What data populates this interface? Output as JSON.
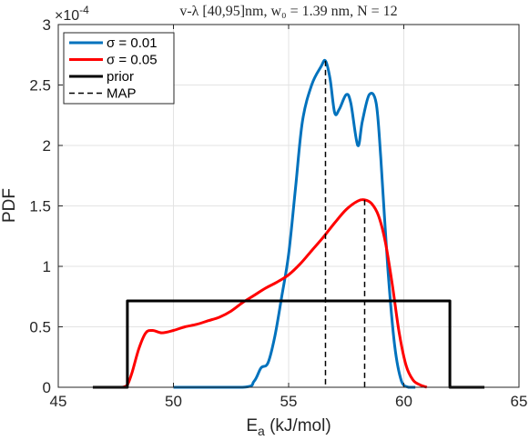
{
  "chart_data": {
    "type": "line",
    "title": "v-λ [40,95]nm, w₀ = 1.39 nm, N = 12",
    "xlabel_main": "E",
    "xlabel_sub": "a",
    "xlabel_rest": " (kJ/mol)",
    "ylabel": "PDF",
    "y_exponent_base": "×10",
    "y_exponent_power": "-4",
    "xlim": [
      45,
      65
    ],
    "ylim": [
      0,
      3
    ],
    "xticks": [
      45,
      50,
      55,
      60,
      65
    ],
    "yticks": [
      0,
      0.5,
      1,
      1.5,
      2,
      2.5,
      3
    ],
    "xtick_labels": [
      "45",
      "50",
      "55",
      "60",
      "65"
    ],
    "ytick_labels": [
      "0",
      "0.5",
      "1",
      "1.5",
      "2",
      "2.5",
      "3"
    ],
    "grid": true,
    "legend_position": "top-left",
    "series": [
      {
        "name": "σ = 0.01",
        "color": "#0072BD",
        "style": "solid",
        "x": [
          50,
          53.0,
          53.5,
          53.8,
          54.1,
          54.4,
          54.7,
          55.0,
          55.3,
          55.6,
          56.0,
          56.4,
          56.6,
          56.8,
          57.0,
          57.2,
          57.5,
          57.7,
          58.0,
          58.2,
          58.5,
          58.8,
          59.0,
          59.3,
          59.6,
          59.9,
          60.2,
          60.5
        ],
        "y": [
          0.0,
          0.0,
          0.05,
          0.16,
          0.2,
          0.42,
          0.75,
          1.1,
          1.65,
          2.2,
          2.5,
          2.65,
          2.7,
          2.55,
          2.27,
          2.3,
          2.42,
          2.35,
          2.0,
          2.2,
          2.42,
          2.35,
          1.9,
          1.0,
          0.35,
          0.05,
          0.0,
          0.0
        ]
      },
      {
        "name": "σ = 0.05",
        "color": "#FF0000",
        "style": "solid",
        "x": [
          47.8,
          48.0,
          48.2,
          48.5,
          48.8,
          49.1,
          49.5,
          50.0,
          50.5,
          51.0,
          51.5,
          52.0,
          52.5,
          53.0,
          53.5,
          54.0,
          54.5,
          55.0,
          55.5,
          56.0,
          56.5,
          57.0,
          57.5,
          58.0,
          58.3,
          58.6,
          58.9,
          59.2,
          59.5,
          59.8,
          60.1,
          60.4,
          60.7,
          61.0
        ],
        "y": [
          0.0,
          0.02,
          0.12,
          0.32,
          0.45,
          0.47,
          0.45,
          0.47,
          0.5,
          0.52,
          0.55,
          0.58,
          0.63,
          0.7,
          0.76,
          0.82,
          0.87,
          0.93,
          1.02,
          1.13,
          1.24,
          1.36,
          1.47,
          1.54,
          1.55,
          1.52,
          1.42,
          1.2,
          0.85,
          0.45,
          0.18,
          0.06,
          0.02,
          0.0
        ]
      },
      {
        "name": "prior",
        "color": "#000000",
        "style": "solid",
        "x": [
          46.5,
          48.0,
          48.0,
          62.0,
          62.0,
          63.5
        ],
        "y": [
          0.0,
          0.0,
          0.714,
          0.714,
          0.0,
          0.0
        ]
      }
    ],
    "map_lines": [
      {
        "name": "MAP",
        "series": "σ = 0.01",
        "x": 56.6,
        "y": 2.7
      },
      {
        "name": "MAP",
        "series": "σ = 0.05",
        "x": 58.3,
        "y": 1.55
      }
    ],
    "legend": [
      {
        "label": "σ = 0.01",
        "color": "#0072BD",
        "style": "solid"
      },
      {
        "label": "σ = 0.05",
        "color": "#FF0000",
        "style": "solid"
      },
      {
        "label": "prior",
        "color": "#000000",
        "style": "solid"
      },
      {
        "label": "MAP",
        "color": "#000000",
        "style": "dashed"
      }
    ]
  }
}
